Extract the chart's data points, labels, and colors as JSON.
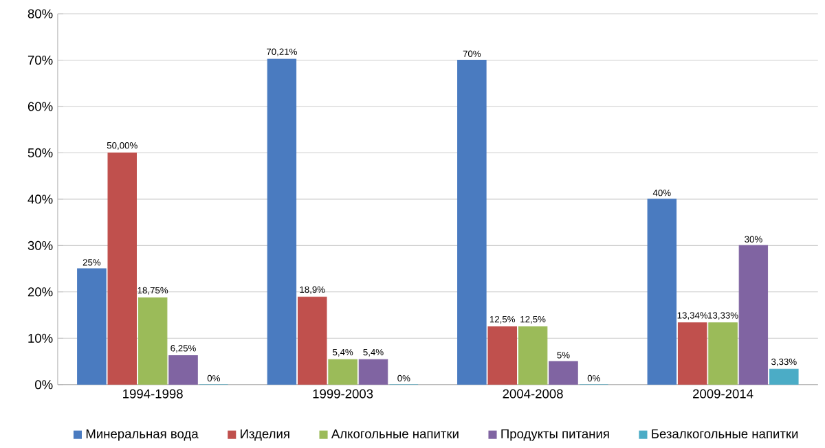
{
  "chart_data": {
    "type": "bar",
    "categories": [
      "1994-1998",
      "1999-2003",
      "2004-2008",
      "2009-2014"
    ],
    "series": [
      {
        "name": "Минеральная вода",
        "color": "#4a7bc0",
        "values": [
          25,
          70.21,
          70,
          40
        ],
        "value_labels": [
          "25%",
          "70,21%",
          "70%",
          "40%"
        ]
      },
      {
        "name": "Изделия",
        "color": "#c0504d",
        "values": [
          50.0,
          18.9,
          12.5,
          13.34
        ],
        "value_labels": [
          "50,00%",
          "18,9%",
          "12,5%",
          "13,34%"
        ]
      },
      {
        "name": "Алкогольные напитки",
        "color": "#9bbb59",
        "values": [
          18.75,
          5.4,
          12.5,
          13.33
        ],
        "value_labels": [
          "18,75%",
          "5,4%",
          "12,5%",
          "13,33%"
        ]
      },
      {
        "name": "Продукты питания",
        "color": "#8064a2",
        "values": [
          6.25,
          5.4,
          5,
          30
        ],
        "value_labels": [
          "6,25%",
          "5,4%",
          "5%",
          "30%"
        ]
      },
      {
        "name": "Безалкогольные напитки",
        "color": "#4bacc6",
        "values": [
          0,
          0,
          0,
          3.33
        ],
        "value_labels": [
          "0%",
          "0%",
          "0%",
          "3,33%"
        ]
      }
    ],
    "ylim": [
      0,
      80
    ],
    "yticks": [
      {
        "value": 0,
        "label": "0%"
      },
      {
        "value": 10,
        "label": "10%"
      },
      {
        "value": 20,
        "label": "20%"
      },
      {
        "value": 30,
        "label": "30%"
      },
      {
        "value": 40,
        "label": "40%"
      },
      {
        "value": 50,
        "label": "50%"
      },
      {
        "value": 60,
        "label": "60%"
      },
      {
        "value": 70,
        "label": "70%"
      },
      {
        "value": 80,
        "label": "80%"
      }
    ],
    "grid": "y",
    "legend": "bottom"
  }
}
